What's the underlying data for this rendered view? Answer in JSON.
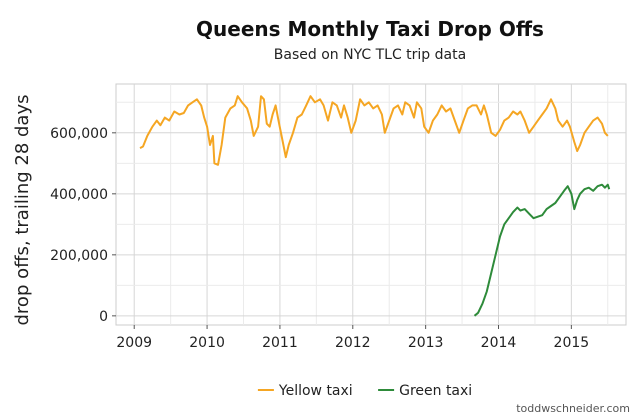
{
  "chart_data": {
    "type": "line",
    "title": "Queens Monthly Taxi Drop Offs",
    "subtitle": "Based on NYC TLC trip data",
    "ylabel": "drop offs, trailing 28 days",
    "xlabel": "",
    "xlim": [
      2008.75,
      2015.75
    ],
    "ylim": [
      -30000,
      760000
    ],
    "x_ticks": [
      {
        "value": 2009,
        "label": "2009"
      },
      {
        "value": 2010,
        "label": "2010"
      },
      {
        "value": 2011,
        "label": "2011"
      },
      {
        "value": 2012,
        "label": "2012"
      },
      {
        "value": 2013,
        "label": "2013"
      },
      {
        "value": 2014,
        "label": "2014"
      },
      {
        "value": 2015,
        "label": "2015"
      }
    ],
    "y_ticks": [
      {
        "value": 0,
        "label": "0"
      },
      {
        "value": 200000,
        "label": "200,000"
      },
      {
        "value": 400000,
        "label": "400,000"
      },
      {
        "value": 600000,
        "label": "600,000"
      }
    ],
    "grid": true,
    "legend_position": "bottom",
    "credit": "toddwschneider.com",
    "series": [
      {
        "name": "Yellow taxi",
        "color": "#f5a623",
        "points": [
          [
            2009.08,
            550000
          ],
          [
            2009.12,
            555000
          ],
          [
            2009.18,
            590000
          ],
          [
            2009.25,
            620000
          ],
          [
            2009.31,
            640000
          ],
          [
            2009.36,
            625000
          ],
          [
            2009.42,
            650000
          ],
          [
            2009.48,
            640000
          ],
          [
            2009.55,
            670000
          ],
          [
            2009.62,
            660000
          ],
          [
            2009.68,
            665000
          ],
          [
            2009.74,
            690000
          ],
          [
            2009.8,
            700000
          ],
          [
            2009.86,
            710000
          ],
          [
            2009.92,
            690000
          ],
          [
            2009.96,
            650000
          ],
          [
            2010.0,
            620000
          ],
          [
            2010.04,
            560000
          ],
          [
            2010.08,
            590000
          ],
          [
            2010.1,
            500000
          ],
          [
            2010.15,
            495000
          ],
          [
            2010.2,
            560000
          ],
          [
            2010.25,
            650000
          ],
          [
            2010.32,
            680000
          ],
          [
            2010.38,
            690000
          ],
          [
            2010.42,
            720000
          ],
          [
            2010.48,
            700000
          ],
          [
            2010.55,
            680000
          ],
          [
            2010.6,
            640000
          ],
          [
            2010.64,
            590000
          ],
          [
            2010.7,
            620000
          ],
          [
            2010.74,
            720000
          ],
          [
            2010.78,
            710000
          ],
          [
            2010.82,
            630000
          ],
          [
            2010.86,
            620000
          ],
          [
            2010.9,
            660000
          ],
          [
            2010.94,
            690000
          ],
          [
            2010.98,
            640000
          ],
          [
            2011.04,
            570000
          ],
          [
            2011.08,
            520000
          ],
          [
            2011.12,
            560000
          ],
          [
            2011.18,
            600000
          ],
          [
            2011.24,
            650000
          ],
          [
            2011.3,
            660000
          ],
          [
            2011.36,
            690000
          ],
          [
            2011.42,
            720000
          ],
          [
            2011.48,
            700000
          ],
          [
            2011.55,
            710000
          ],
          [
            2011.6,
            690000
          ],
          [
            2011.66,
            640000
          ],
          [
            2011.72,
            700000
          ],
          [
            2011.78,
            690000
          ],
          [
            2011.84,
            650000
          ],
          [
            2011.88,
            690000
          ],
          [
            2011.93,
            650000
          ],
          [
            2011.98,
            600000
          ],
          [
            2012.04,
            640000
          ],
          [
            2012.1,
            710000
          ],
          [
            2012.16,
            690000
          ],
          [
            2012.22,
            700000
          ],
          [
            2012.28,
            680000
          ],
          [
            2012.34,
            690000
          ],
          [
            2012.4,
            660000
          ],
          [
            2012.44,
            600000
          ],
          [
            2012.5,
            640000
          ],
          [
            2012.56,
            680000
          ],
          [
            2012.62,
            690000
          ],
          [
            2012.68,
            660000
          ],
          [
            2012.72,
            700000
          ],
          [
            2012.78,
            690000
          ],
          [
            2012.84,
            650000
          ],
          [
            2012.88,
            700000
          ],
          [
            2012.94,
            680000
          ],
          [
            2012.98,
            620000
          ],
          [
            2013.04,
            600000
          ],
          [
            2013.1,
            640000
          ],
          [
            2013.16,
            660000
          ],
          [
            2013.22,
            690000
          ],
          [
            2013.28,
            670000
          ],
          [
            2013.34,
            680000
          ],
          [
            2013.4,
            640000
          ],
          [
            2013.46,
            600000
          ],
          [
            2013.52,
            640000
          ],
          [
            2013.58,
            680000
          ],
          [
            2013.64,
            690000
          ],
          [
            2013.7,
            690000
          ],
          [
            2013.76,
            660000
          ],
          [
            2013.8,
            690000
          ],
          [
            2013.84,
            660000
          ],
          [
            2013.9,
            600000
          ],
          [
            2013.96,
            590000
          ],
          [
            2014.02,
            610000
          ],
          [
            2014.08,
            640000
          ],
          [
            2014.14,
            650000
          ],
          [
            2014.2,
            670000
          ],
          [
            2014.26,
            660000
          ],
          [
            2014.3,
            670000
          ],
          [
            2014.36,
            640000
          ],
          [
            2014.42,
            600000
          ],
          [
            2014.48,
            620000
          ],
          [
            2014.54,
            640000
          ],
          [
            2014.6,
            660000
          ],
          [
            2014.66,
            680000
          ],
          [
            2014.72,
            710000
          ],
          [
            2014.78,
            680000
          ],
          [
            2014.82,
            640000
          ],
          [
            2014.88,
            620000
          ],
          [
            2014.94,
            640000
          ],
          [
            2014.98,
            620000
          ],
          [
            2015.04,
            570000
          ],
          [
            2015.08,
            540000
          ],
          [
            2015.12,
            560000
          ],
          [
            2015.18,
            600000
          ],
          [
            2015.24,
            620000
          ],
          [
            2015.3,
            640000
          ],
          [
            2015.36,
            650000
          ],
          [
            2015.42,
            630000
          ],
          [
            2015.46,
            600000
          ],
          [
            2015.5,
            590000
          ]
        ]
      },
      {
        "name": "Green taxi",
        "color": "#2e8b3a",
        "points": [
          [
            2013.67,
            0
          ],
          [
            2013.72,
            10000
          ],
          [
            2013.78,
            40000
          ],
          [
            2013.84,
            80000
          ],
          [
            2013.9,
            140000
          ],
          [
            2013.96,
            200000
          ],
          [
            2014.02,
            260000
          ],
          [
            2014.08,
            300000
          ],
          [
            2014.14,
            320000
          ],
          [
            2014.2,
            340000
          ],
          [
            2014.26,
            355000
          ],
          [
            2014.3,
            345000
          ],
          [
            2014.36,
            350000
          ],
          [
            2014.42,
            335000
          ],
          [
            2014.48,
            320000
          ],
          [
            2014.54,
            325000
          ],
          [
            2014.6,
            330000
          ],
          [
            2014.66,
            350000
          ],
          [
            2014.72,
            360000
          ],
          [
            2014.78,
            370000
          ],
          [
            2014.84,
            390000
          ],
          [
            2014.9,
            410000
          ],
          [
            2014.95,
            425000
          ],
          [
            2015.0,
            400000
          ],
          [
            2015.04,
            350000
          ],
          [
            2015.08,
            380000
          ],
          [
            2015.12,
            400000
          ],
          [
            2015.18,
            415000
          ],
          [
            2015.24,
            420000
          ],
          [
            2015.3,
            410000
          ],
          [
            2015.36,
            425000
          ],
          [
            2015.42,
            430000
          ],
          [
            2015.46,
            420000
          ],
          [
            2015.5,
            430000
          ],
          [
            2015.52,
            415000
          ]
        ]
      }
    ]
  }
}
